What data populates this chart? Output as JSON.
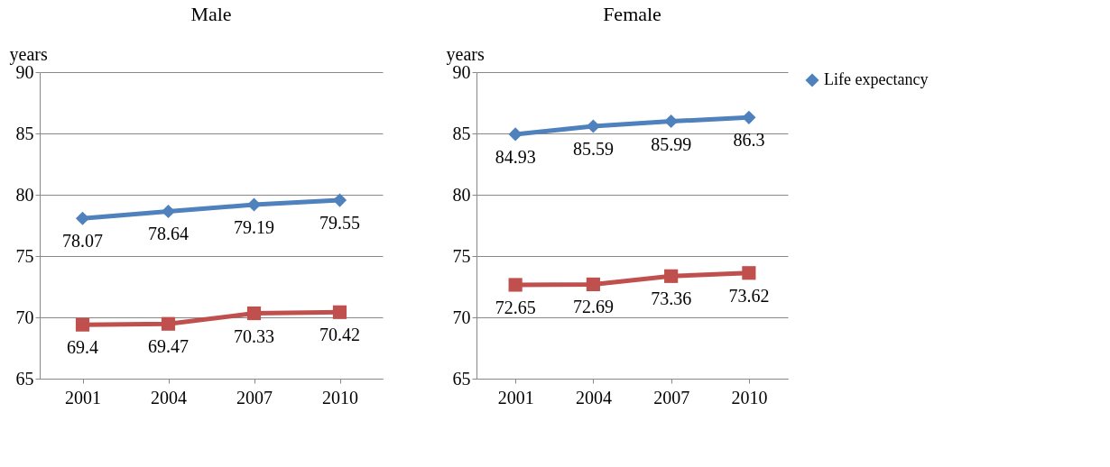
{
  "chart_data": [
    {
      "type": "line",
      "title": "Male",
      "ylabel": "years",
      "categories": [
        "2001",
        "2004",
        "2007",
        "2010"
      ],
      "ylim": [
        65,
        90
      ],
      "yticks": [
        65,
        70,
        75,
        80,
        85,
        90
      ],
      "grid": "y",
      "legend": false,
      "data_labels": true,
      "series": [
        {
          "color": "#4f81bd",
          "marker": "diamond",
          "values": [
            78.07,
            78.64,
            79.19,
            79.55
          ]
        },
        {
          "color": "#c0504d",
          "marker": "square",
          "values": [
            69.4,
            69.47,
            70.33,
            70.42
          ]
        }
      ]
    },
    {
      "type": "line",
      "title": "Female",
      "ylabel": "years",
      "categories": [
        "2001",
        "2004",
        "2007",
        "2010"
      ],
      "ylim": [
        65,
        90
      ],
      "yticks": [
        65,
        70,
        75,
        80,
        85,
        90
      ],
      "grid": "y",
      "legend": "right",
      "data_labels": true,
      "series": [
        {
          "name": "Life expectancy",
          "color": "#4f81bd",
          "marker": "diamond",
          "values": [
            84.93,
            85.59,
            85.99,
            86.3
          ]
        },
        {
          "color": "#c0504d",
          "marker": "square",
          "values": [
            72.65,
            72.69,
            73.36,
            73.62
          ]
        }
      ]
    }
  ]
}
